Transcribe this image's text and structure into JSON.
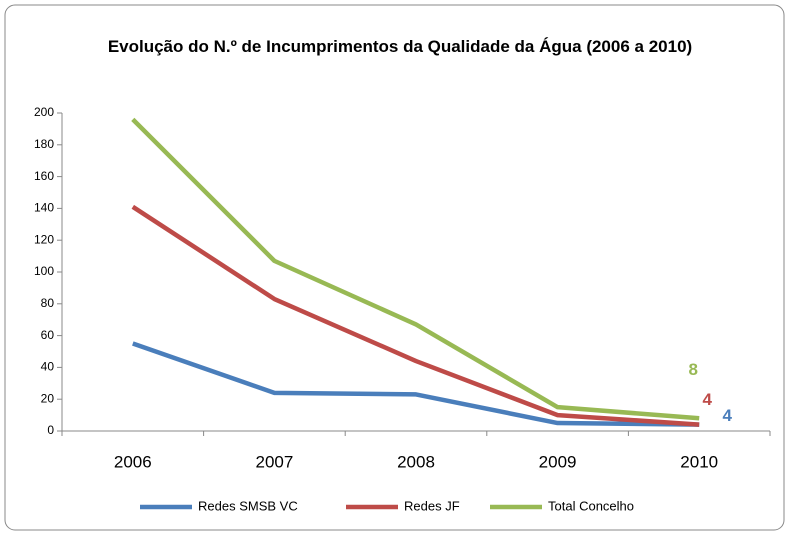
{
  "chart_data": {
    "type": "line",
    "title": "Evolução do N.º de Incumprimentos da Qualidade da Água (2006 a 2010)",
    "categories": [
      "2006",
      "2007",
      "2008",
      "2009",
      "2010"
    ],
    "series": [
      {
        "name": "Redes SMSB VC",
        "color": "#4a7ebb",
        "values": [
          55,
          24,
          23,
          5,
          4
        ]
      },
      {
        "name": "Redes JF",
        "color": "#be4b48",
        "values": [
          141,
          83,
          44,
          10,
          4
        ]
      },
      {
        "name": "Total Concelho",
        "color": "#98b954",
        "values": [
          196,
          107,
          67,
          15,
          8
        ]
      }
    ],
    "ylim": [
      0,
      200
    ],
    "yticks": [
      0,
      20,
      40,
      60,
      80,
      100,
      120,
      140,
      160,
      180,
      200
    ],
    "legend": "bottom",
    "grid": false
  }
}
